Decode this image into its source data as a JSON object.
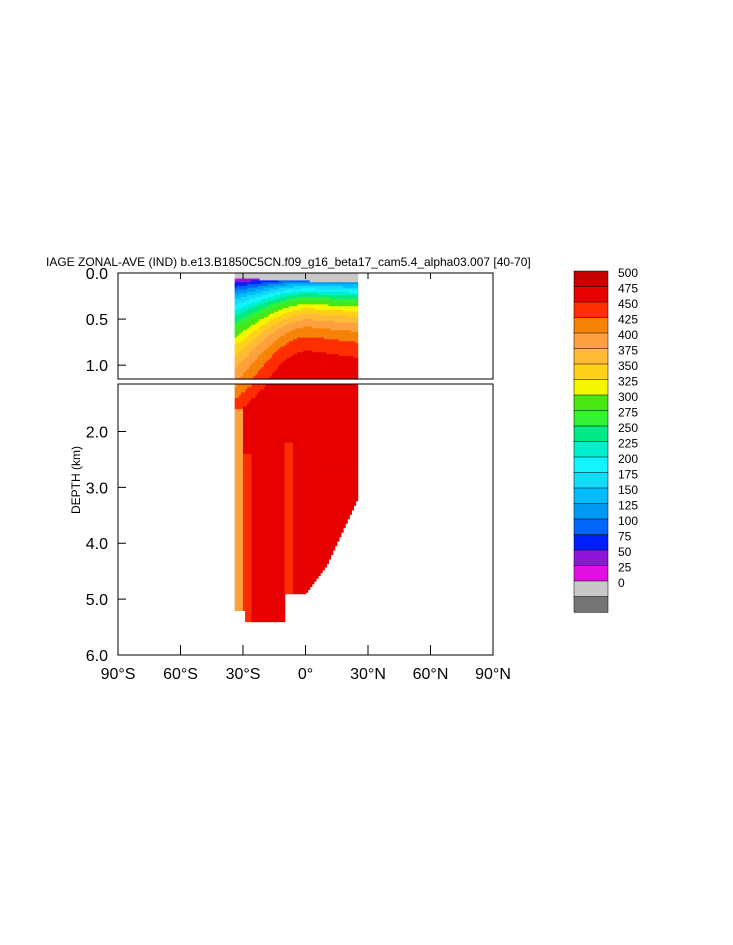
{
  "chart_data": {
    "type": "heatmap",
    "title": "IAGE ZONAL-AVE (IND) b.e13.B1850C5CN.f09_g16_beta17_cam5.4_alpha03.007 [40-70]",
    "ylabel": "DEPTH (km)",
    "xlabel": "",
    "x_ticks": [
      {
        "value": -90,
        "label": "90°S"
      },
      {
        "value": -60,
        "label": "60°S"
      },
      {
        "value": -30,
        "label": "30°S"
      },
      {
        "value": 0,
        "label": "0°"
      },
      {
        "value": 30,
        "label": "30°N"
      },
      {
        "value": 60,
        "label": "60°N"
      },
      {
        "value": 90,
        "label": "90°N"
      }
    ],
    "upper_panel": {
      "ylim": [
        0.0,
        1.15
      ],
      "y_ticks": [
        "0.0",
        "0.5",
        "1.0"
      ],
      "y_values": [
        0.0,
        0.5,
        1.0
      ]
    },
    "lower_panel": {
      "ylim": [
        1.15,
        6.0
      ],
      "y_ticks": [
        "2.0",
        "3.0",
        "4.0",
        "5.0",
        "6.0"
      ],
      "y_values": [
        2.0,
        3.0,
        4.0,
        5.0,
        6.0
      ]
    },
    "xlim": [
      -90,
      90
    ],
    "data_extent_lat": [
      -34,
      25
    ],
    "colorbar": {
      "labels": [
        "500",
        "475",
        "450",
        "425",
        "400",
        "375",
        "350",
        "325",
        "300",
        "275",
        "250",
        "225",
        "200",
        "175",
        "150",
        "125",
        "100",
        "75",
        "50",
        "25",
        "0"
      ],
      "levels": [
        0,
        25,
        50,
        75,
        100,
        125,
        150,
        175,
        200,
        225,
        250,
        275,
        300,
        325,
        350,
        375,
        400,
        425,
        450,
        475,
        500
      ],
      "colors": [
        "#747474",
        "#c8c8c8",
        "#e10fdf",
        "#8f15da",
        "#0020fb",
        "#0266f6",
        "#0099f2",
        "#00befe",
        "#14dbf7",
        "#12f4ff",
        "#00f0cd",
        "#00e986",
        "#32f136",
        "#4ae614",
        "#f6f600",
        "#ffd11b",
        "#ffba38",
        "#fea03f",
        "#f78208",
        "#ff2e00",
        "#e60000",
        "#c60000"
      ]
    },
    "profile_samples": [
      {
        "lat": -34,
        "depth_of_level": {
          "50": 0.55,
          "100": 0.9,
          "200": 1.15,
          "300": 1.6,
          "400": 2.5
        },
        "bottom": 5.2
      },
      {
        "lat": -20,
        "depth_of_level": {
          "50": 0.2,
          "100": 0.45,
          "200": 0.75,
          "300": 1.2,
          "400": 1.6,
          "450": 2.3
        },
        "bottom": 5.4
      },
      {
        "lat": -5,
        "depth_of_level": {
          "50": 0.08,
          "100": 0.25,
          "200": 0.55,
          "300": 0.9,
          "400": 1.2,
          "450": 2.1
        },
        "bottom": 4.9
      },
      {
        "lat": 10,
        "depth_of_level": {
          "50": 0.05,
          "100": 0.2,
          "200": 0.5,
          "300": 0.85,
          "400": 1.2,
          "450": 1.8
        },
        "bottom": 4.2
      },
      {
        "lat": 25,
        "depth_of_level": {
          "50": 0.04,
          "100": 0.2,
          "200": 0.5,
          "300": 0.85,
          "400": 1.2,
          "450": 1.7
        },
        "bottom": 3.3
      }
    ]
  }
}
